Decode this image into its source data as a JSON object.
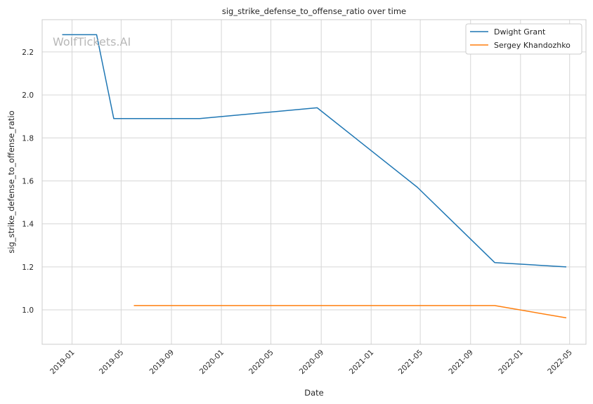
{
  "chart_data": {
    "type": "line",
    "title": "sig_strike_defense_to_offense_ratio over time",
    "xlabel": "Date",
    "ylabel": "sig_strike_defense_to_offense_ratio",
    "watermark": "WolfTickets.AI",
    "x_ticks": [
      "2019-01",
      "2019-05",
      "2019-09",
      "2020-01",
      "2020-05",
      "2020-09",
      "2021-01",
      "2021-05",
      "2021-09",
      "2022-01",
      "2022-05"
    ],
    "y_ticks": [
      "1.0",
      "1.2",
      "1.4",
      "1.6",
      "1.8",
      "2.0",
      "2.2"
    ],
    "xlim": [
      "2018-10-20",
      "2022-06-10"
    ],
    "ylim": [
      0.84,
      2.35
    ],
    "grid": true,
    "legend_position": "top-right",
    "series": [
      {
        "name": "Dwight Grant",
        "color": "#1f77b4",
        "points": [
          {
            "x": "2018-12-08",
            "y": 2.28
          },
          {
            "x": "2019-03-02",
            "y": 2.28
          },
          {
            "x": "2019-04-13",
            "y": 1.89
          },
          {
            "x": "2019-11-09",
            "y": 1.89
          },
          {
            "x": "2020-08-22",
            "y": 1.94
          },
          {
            "x": "2021-04-24",
            "y": 1.57
          },
          {
            "x": "2021-10-30",
            "y": 1.22
          },
          {
            "x": "2022-04-23",
            "y": 1.2
          }
        ]
      },
      {
        "name": "Sergey Khandozhko",
        "color": "#ff7f0e",
        "points": [
          {
            "x": "2019-06-01",
            "y": 1.02
          },
          {
            "x": "2021-10-30",
            "y": 1.02
          },
          {
            "x": "2022-04-23",
            "y": 0.963
          }
        ]
      }
    ]
  }
}
